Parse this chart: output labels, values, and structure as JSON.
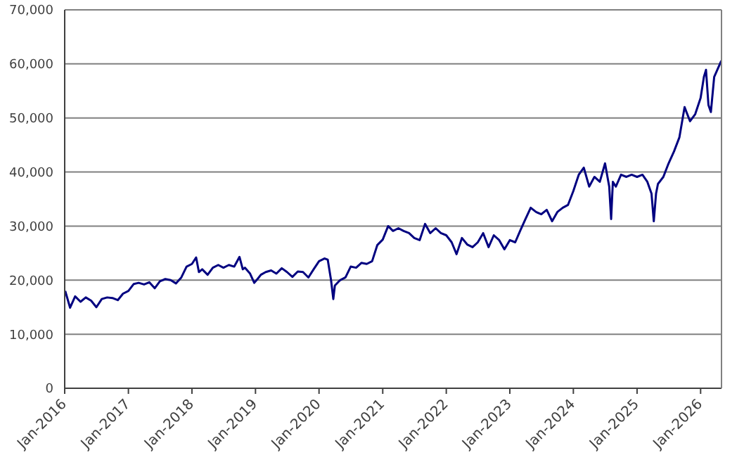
{
  "chart_data": {
    "type": "line",
    "x": [
      "2016-01-04",
      "2016-02-01",
      "2016-03-01",
      "2016-04-01",
      "2016-05-01",
      "2016-06-01",
      "2016-07-01",
      "2016-08-01",
      "2016-09-01",
      "2016-10-01",
      "2016-11-01",
      "2016-12-01",
      "2017-01-01",
      "2017-02-01",
      "2017-03-01",
      "2017-04-01",
      "2017-05-01",
      "2017-06-01",
      "2017-07-01",
      "2017-08-01",
      "2017-09-01",
      "2017-10-01",
      "2017-11-01",
      "2017-12-01",
      "2018-01-01",
      "2018-01-25",
      "2018-02-10",
      "2018-03-01",
      "2018-04-01",
      "2018-05-01",
      "2018-06-01",
      "2018-07-01",
      "2018-08-01",
      "2018-09-01",
      "2018-10-01",
      "2018-10-20",
      "2018-11-01",
      "2018-12-01",
      "2018-12-25",
      "2019-01-15",
      "2019-02-01",
      "2019-03-01",
      "2019-04-01",
      "2019-05-01",
      "2019-06-01",
      "2019-07-01",
      "2019-08-01",
      "2019-09-01",
      "2019-10-01",
      "2019-11-01",
      "2019-12-01",
      "2020-01-01",
      "2020-02-01",
      "2020-02-20",
      "2020-03-10",
      "2020-03-23",
      "2020-04-01",
      "2020-05-01",
      "2020-06-01",
      "2020-07-01",
      "2020-08-01",
      "2020-09-01",
      "2020-10-01",
      "2020-11-01",
      "2020-12-01",
      "2021-01-01",
      "2021-02-01",
      "2021-03-01",
      "2021-04-01",
      "2021-05-01",
      "2021-06-01",
      "2021-07-01",
      "2021-08-01",
      "2021-09-01",
      "2021-10-01",
      "2021-11-01",
      "2021-12-01",
      "2022-01-01",
      "2022-02-01",
      "2022-03-01",
      "2022-04-01",
      "2022-05-01",
      "2022-06-01",
      "2022-07-01",
      "2022-08-01",
      "2022-09-01",
      "2022-10-01",
      "2022-11-01",
      "2022-12-01",
      "2023-01-01",
      "2023-02-01",
      "2023-03-01",
      "2023-04-01",
      "2023-05-01",
      "2023-06-01",
      "2023-07-01",
      "2023-08-01",
      "2023-09-01",
      "2023-10-01",
      "2023-11-01",
      "2023-12-01",
      "2024-01-01",
      "2024-02-01",
      "2024-03-01",
      "2024-04-01",
      "2024-05-01",
      "2024-06-01",
      "2024-07-01",
      "2024-07-25",
      "2024-08-05",
      "2024-08-15",
      "2024-09-01",
      "2024-10-01",
      "2024-11-01",
      "2024-12-01",
      "2025-01-01",
      "2025-02-01",
      "2025-03-01",
      "2025-03-25",
      "2025-04-07",
      "2025-04-20",
      "2025-05-01",
      "2025-06-01",
      "2025-07-01",
      "2025-08-01",
      "2025-09-01",
      "2025-10-01",
      "2025-11-01",
      "2025-12-01",
      "2026-01-01",
      "2026-01-20",
      "2026-02-01",
      "2026-02-15",
      "2026-03-01",
      "2026-03-20",
      "2026-04-30"
    ],
    "series": [
      {
        "color": "#000080",
        "values": [
          18000,
          14900,
          17000,
          16000,
          16800,
          16200,
          15000,
          16500,
          16800,
          16700,
          16300,
          17500,
          18000,
          19300,
          19500,
          19200,
          19600,
          18500,
          19800,
          20200,
          20000,
          19400,
          20500,
          22500,
          23000,
          24200,
          21500,
          22000,
          21000,
          22300,
          22800,
          22300,
          22800,
          22500,
          24300,
          22000,
          22300,
          21200,
          19500,
          20300,
          21000,
          21500,
          21800,
          21200,
          22200,
          21500,
          20600,
          21600,
          21500,
          20500,
          22000,
          23500,
          24000,
          23800,
          20000,
          16500,
          19000,
          20000,
          20500,
          22500,
          22300,
          23200,
          23000,
          23500,
          26500,
          27500,
          30000,
          29100,
          29600,
          29100,
          28700,
          27800,
          27400,
          30400,
          28700,
          29600,
          28700,
          28300,
          27000,
          24800,
          27800,
          26600,
          26100,
          27000,
          28700,
          26100,
          28300,
          27400,
          25700,
          27400,
          27000,
          29100,
          31300,
          33400,
          32600,
          32200,
          33000,
          30900,
          32600,
          33400,
          33900,
          36500,
          39500,
          40800,
          37300,
          39100,
          38200,
          41600,
          37300,
          31300,
          38200,
          37300,
          39500,
          39100,
          39500,
          39100,
          39500,
          38200,
          36000,
          30900,
          36000,
          37800,
          39100,
          41600,
          43800,
          46400,
          52000,
          49400,
          50700,
          53700,
          57600,
          58900,
          52400,
          51100,
          57600,
          60600
        ]
      }
    ],
    "xlim": [
      "2016-01-01",
      "2026-05-01"
    ],
    "xticks": [
      {
        "value": "2016-01-01",
        "label": "Jan-2016"
      },
      {
        "value": "2017-01-01",
        "label": "Jan-2017"
      },
      {
        "value": "2018-01-01",
        "label": "Jan-2018"
      },
      {
        "value": "2019-01-01",
        "label": "Jan-2019"
      },
      {
        "value": "2020-01-01",
        "label": "Jan-2020"
      },
      {
        "value": "2021-01-01",
        "label": "Jan-2021"
      },
      {
        "value": "2022-01-01",
        "label": "Jan-2022"
      },
      {
        "value": "2023-01-01",
        "label": "Jan-2023"
      },
      {
        "value": "2024-01-01",
        "label": "Jan-2024"
      },
      {
        "value": "2025-01-01",
        "label": "Jan-2025"
      },
      {
        "value": "2026-01-01",
        "label": "Jan-2026"
      }
    ],
    "ylim": [
      0,
      70000
    ],
    "yticks": [
      0,
      {
        "value": 10000,
        "label": "10,000"
      },
      {
        "value": 20000,
        "label": "20,000"
      },
      {
        "value": 30000,
        "label": "30,000"
      },
      {
        "value": 40000,
        "label": "40,000"
      },
      {
        "value": 50000,
        "label": "50,000"
      },
      {
        "value": 60000,
        "label": "60,000"
      },
      {
        "value": 70000,
        "label": "70,000"
      }
    ],
    "grid": "y",
    "legend": false,
    "marker": "none",
    "line_style": "solid"
  }
}
